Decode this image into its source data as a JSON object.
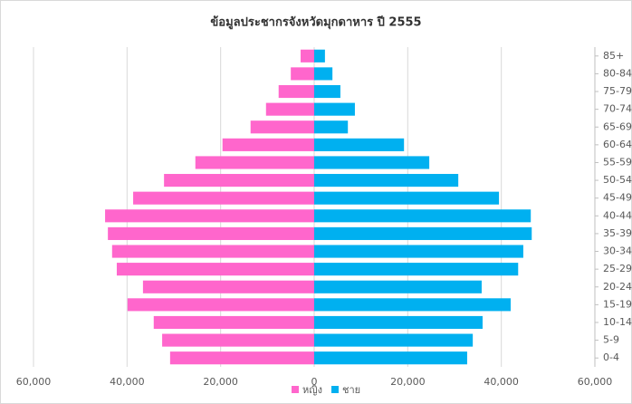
{
  "chart_data": {
    "type": "pyramid",
    "title": "ข้อมูลประชากรจังหวัดมุกดาหาร ปี 2555",
    "categories": [
      "0-4",
      "5-9",
      "10-14",
      "15-19",
      "20-24",
      "25-29",
      "30-34",
      "35-39",
      "40-44",
      "45-49",
      "50-54",
      "55-59",
      "60-64",
      "65-69",
      "70-74",
      "75-79",
      "80-84",
      "85+"
    ],
    "series": [
      {
        "name": "หญิง",
        "color": "#ff66cc",
        "values": [
          -30800,
          -32500,
          -34300,
          -39900,
          -36600,
          -42200,
          -43200,
          -44100,
          -44700,
          -38700,
          -32100,
          -25400,
          -19600,
          -13600,
          -10300,
          -7600,
          -5000,
          -2900
        ]
      },
      {
        "name": "ชาย",
        "color": "#00b0f0",
        "values": [
          32700,
          33900,
          36000,
          42000,
          35800,
          43600,
          44700,
          46500,
          46300,
          39500,
          30800,
          24600,
          19200,
          7200,
          8700,
          5600,
          3900,
          2300
        ]
      }
    ],
    "xlim": [
      -60000,
      60000
    ],
    "xticks": [
      {
        "value": -60000,
        "label": "60,000"
      },
      {
        "value": -40000,
        "label": "40,000"
      },
      {
        "value": -20000,
        "label": "20,000"
      },
      0,
      {
        "value": 20000,
        "label": "20,000"
      },
      {
        "value": 40000,
        "label": "40,000"
      },
      {
        "value": 60000,
        "label": "60,000"
      }
    ],
    "grid": true,
    "legend": "bottom"
  }
}
